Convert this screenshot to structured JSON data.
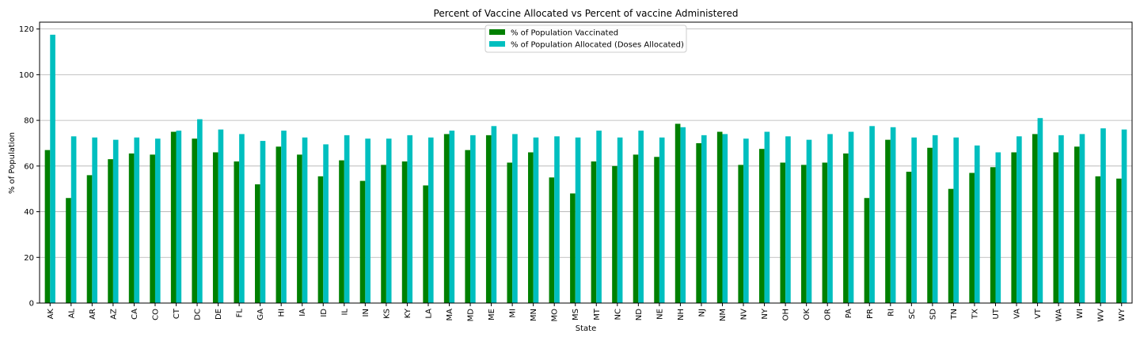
{
  "chart_data": {
    "type": "bar",
    "title": "Percent of Vaccine Allocated vs Percent of vaccine Administered",
    "xlabel": "State",
    "ylabel": "% of Population",
    "ylim": [
      0,
      123
    ],
    "yticks": [
      0,
      20,
      40,
      60,
      80,
      100,
      120
    ],
    "grid": "y",
    "legend_position": "top-center",
    "categories": [
      "AK",
      "AL",
      "AR",
      "AZ",
      "CA",
      "CO",
      "CT",
      "DC",
      "DE",
      "FL",
      "GA",
      "HI",
      "IA",
      "ID",
      "IL",
      "IN",
      "KS",
      "KY",
      "LA",
      "MA",
      "MD",
      "ME",
      "MI",
      "MN",
      "MO",
      "MS",
      "MT",
      "NC",
      "ND",
      "NE",
      "NH",
      "NJ",
      "NM",
      "NV",
      "NY",
      "OH",
      "OK",
      "OR",
      "PA",
      "PR",
      "RI",
      "SC",
      "SD",
      "TN",
      "TX",
      "UT",
      "VA",
      "VT",
      "WA",
      "WI",
      "WV",
      "WY"
    ],
    "series": [
      {
        "name": "% of Population Vaccinated",
        "color": "#008000",
        "values": [
          67,
          46,
          56,
          63,
          65.5,
          65,
          75,
          72,
          66,
          62,
          52,
          68.5,
          65,
          55.5,
          62.5,
          53.5,
          60.5,
          62,
          51.5,
          74,
          67,
          73.5,
          61.5,
          66,
          55,
          48,
          62,
          60,
          65,
          64,
          78.5,
          70,
          75,
          60.5,
          67.5,
          61.5,
          60.5,
          61.5,
          65.5,
          46,
          71.5,
          57.5,
          68,
          50,
          57,
          59.5,
          66,
          74,
          66,
          68.5,
          55.5,
          54.5
        ]
      },
      {
        "name": "% of Population Allocated (Doses Allocated)",
        "color": "#00BFBF",
        "values": [
          117.5,
          73,
          72.5,
          71.5,
          72.5,
          72,
          75.5,
          80.5,
          76,
          74,
          71,
          75.5,
          72.5,
          69.5,
          73.5,
          72,
          72,
          73.5,
          72.5,
          75.5,
          73.5,
          77.5,
          74,
          72.5,
          73,
          72.5,
          75.5,
          72.5,
          75.5,
          72.5,
          77,
          73.5,
          74,
          72,
          75,
          73,
          71.5,
          74,
          75,
          77.5,
          77,
          72.5,
          73.5,
          72.5,
          69,
          66,
          73,
          81,
          73.5,
          74,
          76.5,
          76
        ]
      }
    ]
  }
}
